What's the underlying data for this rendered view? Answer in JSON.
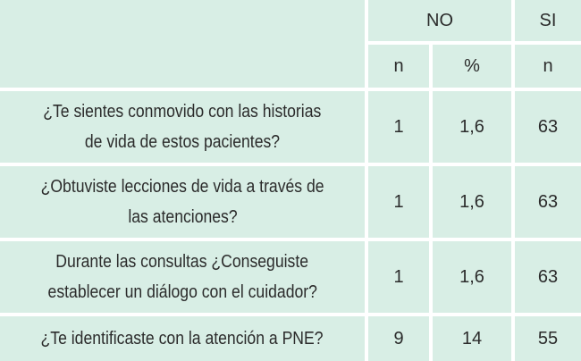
{
  "header": {
    "no": "NO",
    "si": "SI",
    "no_n": "n",
    "no_pct": "%",
    "si_n": "n"
  },
  "table": {
    "rows": [
      {
        "question": [
          "¿Te sientes conmovido con las historias",
          "de vida de estos pacientes?"
        ],
        "no_n": "1",
        "no_pct": "1,6",
        "si_n": "63"
      },
      {
        "question": [
          "¿Obtuviste lecciones de vida a través de",
          "las atenciones?"
        ],
        "no_n": "1",
        "no_pct": "1,6",
        "si_n": "63"
      },
      {
        "question": [
          "Durante las consultas ¿Conseguiste",
          "establecer un diálogo con el cuidador?"
        ],
        "no_n": "1",
        "no_pct": "1,6",
        "si_n": "63"
      },
      {
        "question": [
          "¿Te identificaste con la atención a PNE?"
        ],
        "no_n": "9",
        "no_pct": "14",
        "si_n": "55"
      }
    ]
  }
}
